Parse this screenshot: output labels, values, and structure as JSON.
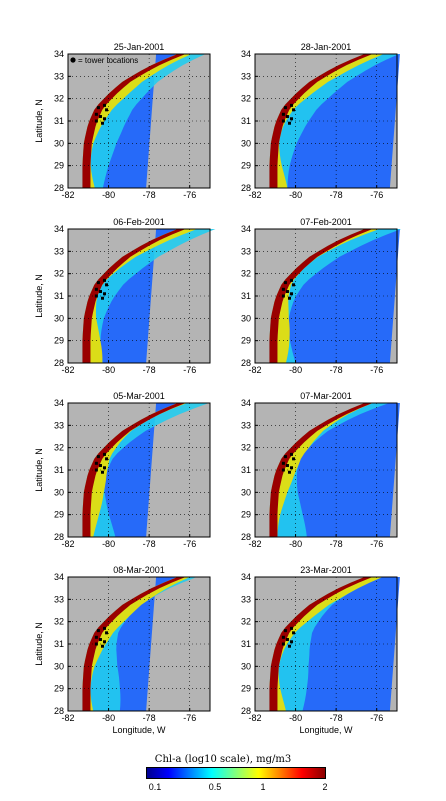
{
  "panels": [
    {
      "date": "25-Jan-2001",
      "legend": "= tower locations"
    },
    {
      "date": "28-Jan-2001"
    },
    {
      "date": "06-Feb-2001"
    },
    {
      "date": "07-Feb-2001"
    },
    {
      "date": "05-Mar-2001"
    },
    {
      "date": "07-Mar-2001"
    },
    {
      "date": "08-Mar-2001"
    },
    {
      "date": "23-Mar-2001"
    }
  ],
  "axes": {
    "ylabel": "Latitude, N",
    "xlabel": "Longitude, W",
    "lat_ticks": [
      "28",
      "29",
      "30",
      "31",
      "32",
      "33",
      "34"
    ],
    "lon_ticks": [
      "-82",
      "-80",
      "-78",
      "-76"
    ],
    "lat_range": [
      28,
      34
    ],
    "lon_range": [
      -82,
      -75
    ]
  },
  "colorbar": {
    "title": "Chl-a (log10 scale), mg/m3",
    "ticks": [
      "0.1",
      "0.5",
      "1",
      "2"
    ],
    "colormap": "jet"
  },
  "colors": {
    "land": "#b4b4b4",
    "coast_high": "#9a0000",
    "shelf": "#f0e000",
    "offshore": "#1a64ff"
  }
}
